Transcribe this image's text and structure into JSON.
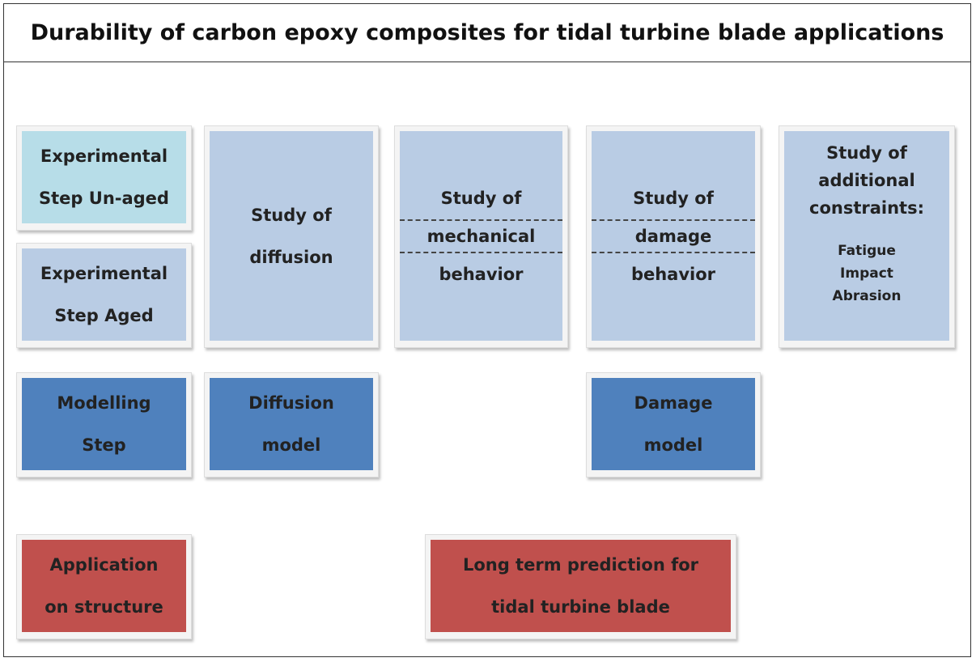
{
  "title": "Durability of carbon epoxy composites for tidal turbine blade applications",
  "boxes": [
    {
      "lines": [
        "Experimental",
        "Step Un-aged"
      ]
    },
    {
      "lines": [
        "Experimental",
        "Step Aged"
      ]
    },
    {
      "lines": [
        "Study of",
        "diffusion"
      ]
    },
    {
      "lines": [
        "Study of",
        "mechanical",
        "behavior"
      ]
    },
    {
      "lines": [
        "Study of",
        "damage",
        "behavior"
      ]
    },
    {
      "lines": [
        "Study of",
        "additional",
        "constraints:"
      ],
      "items": [
        "Fatigue",
        "Impact",
        "Abrasion"
      ]
    },
    {
      "lines": [
        "Modelling",
        "Step"
      ]
    },
    {
      "lines": [
        "Diffusion",
        "model"
      ]
    },
    {
      "lines": [
        "Damage",
        "model"
      ]
    },
    {
      "lines": [
        "Application",
        "on structure"
      ]
    },
    {
      "lines": [
        "Long term prediction  for",
        "tidal turbine blade"
      ]
    }
  ]
}
